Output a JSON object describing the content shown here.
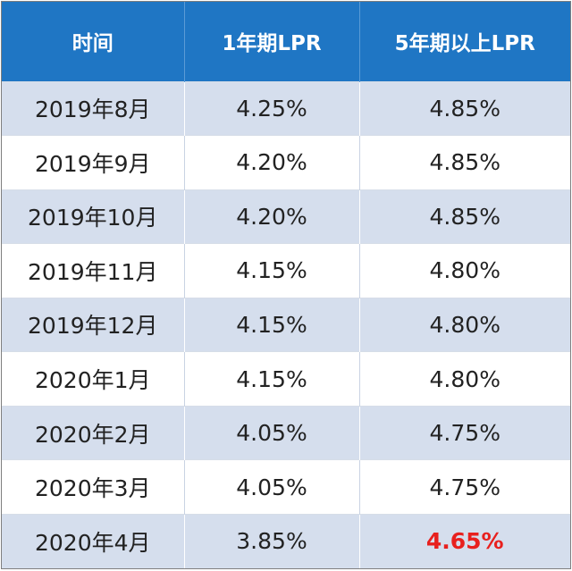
{
  "header": {
    "col_time": "时间",
    "col_lpr1": "1年期LPR",
    "col_lpr5": "5年期以上LPR"
  },
  "rows": [
    {
      "time": "2019年8月",
      "lpr1": "4.25%",
      "lpr5": "4.85%"
    },
    {
      "time": "2019年9月",
      "lpr1": "4.20%",
      "lpr5": "4.85%"
    },
    {
      "time": "2019年10月",
      "lpr1": "4.20%",
      "lpr5": "4.85%"
    },
    {
      "time": "2019年11月",
      "lpr1": "4.15%",
      "lpr5": "4.80%"
    },
    {
      "time": "2019年12月",
      "lpr1": "4.15%",
      "lpr5": "4.80%"
    },
    {
      "time": "2020年1月",
      "lpr1": "4.15%",
      "lpr5": "4.80%"
    },
    {
      "time": "2020年2月",
      "lpr1": "4.05%",
      "lpr5": "4.75%"
    },
    {
      "time": "2020年3月",
      "lpr1": "4.05%",
      "lpr5": "4.75%"
    },
    {
      "time": "2020年4月",
      "lpr1": "3.85%",
      "lpr5": "4.65%"
    }
  ],
  "colors": {
    "header_bg": "#1f76c4",
    "row_shaded": "#d5deed",
    "row_plain": "#ffffff",
    "highlight": "#e8201e"
  }
}
